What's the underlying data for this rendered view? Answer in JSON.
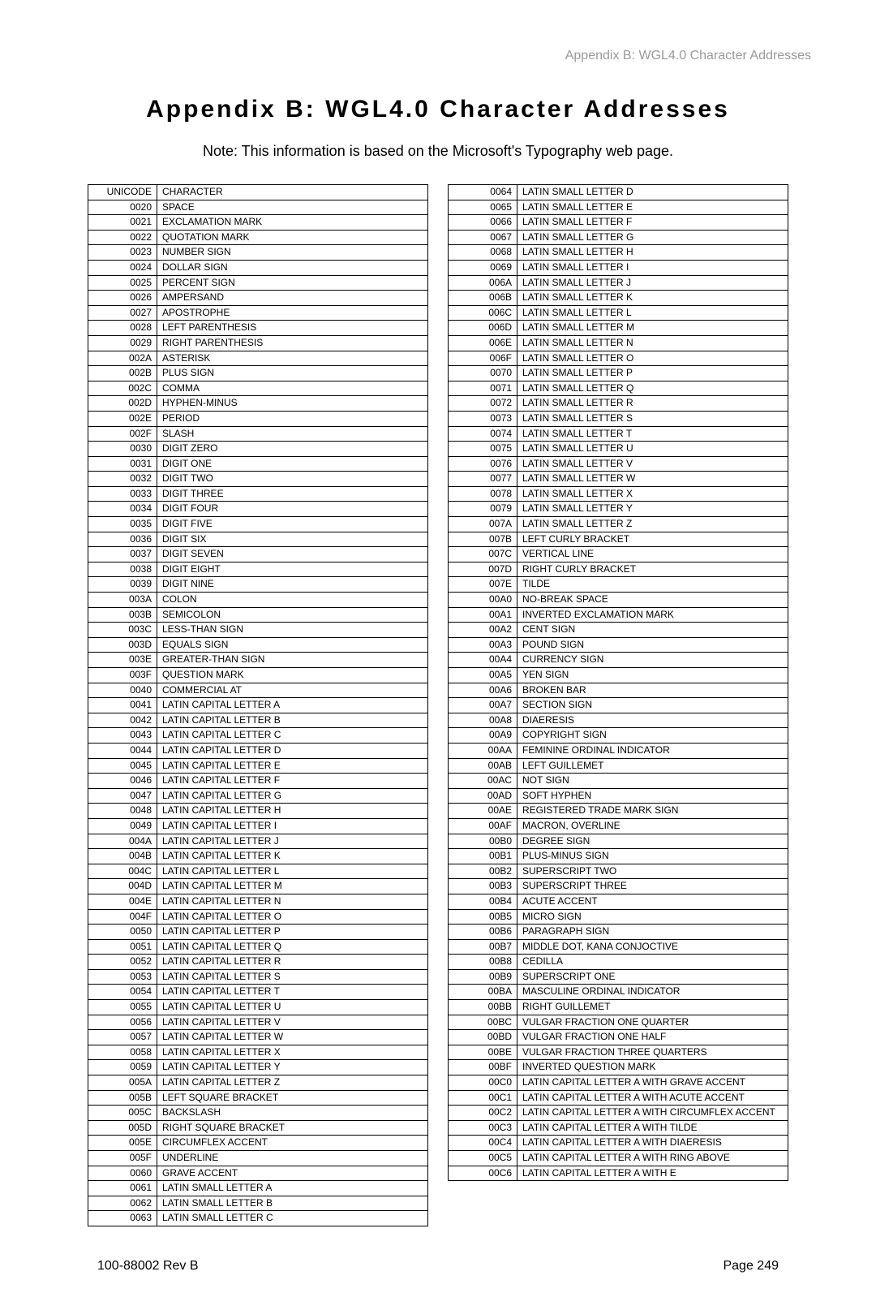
{
  "header": "Appendix B: WGL4.0 Character Addresses",
  "title": "Appendix B: WGL4.0 Character Addresses",
  "note": "Note: This information is based on the Microsoft's Typography web page.",
  "footer_left": "100-88002 Rev B",
  "footer_right": "Page 249",
  "table_header_code": "UNICODE",
  "table_header_name": "CHARACTER",
  "left_rows": [
    [
      "0020",
      "SPACE"
    ],
    [
      "0021",
      "EXCLAMATION MARK"
    ],
    [
      "0022",
      "QUOTATION MARK"
    ],
    [
      "0023",
      "NUMBER SIGN"
    ],
    [
      "0024",
      "DOLLAR SIGN"
    ],
    [
      "0025",
      "PERCENT SIGN"
    ],
    [
      "0026",
      "AMPERSAND"
    ],
    [
      "0027",
      "APOSTROPHE"
    ],
    [
      "0028",
      "LEFT PARENTHESIS"
    ],
    [
      "0029",
      "RIGHT PARENTHESIS"
    ],
    [
      "002A",
      "ASTERISK"
    ],
    [
      "002B",
      "PLUS SIGN"
    ],
    [
      "002C",
      "COMMA"
    ],
    [
      "002D",
      "HYPHEN-MINUS"
    ],
    [
      "002E",
      "PERIOD"
    ],
    [
      "002F",
      "SLASH"
    ],
    [
      "0030",
      "DIGIT ZERO"
    ],
    [
      "0031",
      "DIGIT ONE"
    ],
    [
      "0032",
      "DIGIT TWO"
    ],
    [
      "0033",
      "DIGIT THREE"
    ],
    [
      "0034",
      "DIGIT FOUR"
    ],
    [
      "0035",
      "DIGIT FIVE"
    ],
    [
      "0036",
      "DIGIT SIX"
    ],
    [
      "0037",
      "DIGIT SEVEN"
    ],
    [
      "0038",
      "DIGIT EIGHT"
    ],
    [
      "0039",
      "DIGIT NINE"
    ],
    [
      "003A",
      "COLON"
    ],
    [
      "003B",
      "SEMICOLON"
    ],
    [
      "003C",
      "LESS-THAN SIGN"
    ],
    [
      "003D",
      "EQUALS SIGN"
    ],
    [
      "003E",
      "GREATER-THAN SIGN"
    ],
    [
      "003F",
      "QUESTION MARK"
    ],
    [
      "0040",
      "COMMERCIAL AT"
    ],
    [
      "0041",
      "LATIN CAPITAL LETTER A"
    ],
    [
      "0042",
      "LATIN CAPITAL LETTER B"
    ],
    [
      "0043",
      "LATIN CAPITAL LETTER C"
    ],
    [
      "0044",
      "LATIN CAPITAL LETTER D"
    ],
    [
      "0045",
      "LATIN CAPITAL LETTER E"
    ],
    [
      "0046",
      "LATIN CAPITAL LETTER F"
    ],
    [
      "0047",
      "LATIN CAPITAL LETTER G"
    ],
    [
      "0048",
      "LATIN CAPITAL LETTER H"
    ],
    [
      "0049",
      "LATIN CAPITAL LETTER I"
    ],
    [
      "004A",
      "LATIN CAPITAL LETTER J"
    ],
    [
      "004B",
      "LATIN CAPITAL LETTER K"
    ],
    [
      "004C",
      "LATIN CAPITAL LETTER L"
    ],
    [
      "004D",
      "LATIN CAPITAL LETTER M"
    ],
    [
      "004E",
      "LATIN CAPITAL LETTER N"
    ],
    [
      "004F",
      "LATIN CAPITAL LETTER O"
    ],
    [
      "0050",
      "LATIN CAPITAL LETTER P"
    ],
    [
      "0051",
      "LATIN CAPITAL LETTER Q"
    ],
    [
      "0052",
      "LATIN CAPITAL LETTER R"
    ],
    [
      "0053",
      "LATIN CAPITAL LETTER S"
    ],
    [
      "0054",
      "LATIN CAPITAL LETTER T"
    ],
    [
      "0055",
      "LATIN CAPITAL LETTER U"
    ],
    [
      "0056",
      "LATIN CAPITAL LETTER V"
    ],
    [
      "0057",
      "LATIN CAPITAL LETTER W"
    ],
    [
      "0058",
      "LATIN CAPITAL LETTER X"
    ],
    [
      "0059",
      "LATIN CAPITAL LETTER Y"
    ],
    [
      "005A",
      "LATIN CAPITAL LETTER Z"
    ],
    [
      "005B",
      "LEFT SQUARE BRACKET"
    ],
    [
      "005C",
      "BACKSLASH"
    ],
    [
      "005D",
      "RIGHT SQUARE BRACKET"
    ],
    [
      "005E",
      "CIRCUMFLEX ACCENT"
    ],
    [
      "005F",
      "UNDERLINE"
    ],
    [
      "0060",
      "GRAVE ACCENT"
    ],
    [
      "0061",
      "LATIN SMALL LETTER A"
    ],
    [
      "0062",
      "LATIN SMALL LETTER B"
    ],
    [
      "0063",
      "LATIN SMALL LETTER C"
    ]
  ],
  "right_rows": [
    [
      "0064",
      "LATIN SMALL LETTER D"
    ],
    [
      "0065",
      "LATIN SMALL LETTER E"
    ],
    [
      "0066",
      "LATIN SMALL LETTER F"
    ],
    [
      "0067",
      "LATIN SMALL LETTER G"
    ],
    [
      "0068",
      "LATIN SMALL LETTER H"
    ],
    [
      "0069",
      "LATIN SMALL LETTER I"
    ],
    [
      "006A",
      "LATIN SMALL LETTER J"
    ],
    [
      "006B",
      "LATIN SMALL LETTER K"
    ],
    [
      "006C",
      "LATIN SMALL LETTER L"
    ],
    [
      "006D",
      "LATIN SMALL LETTER M"
    ],
    [
      "006E",
      "LATIN SMALL LETTER N"
    ],
    [
      "006F",
      "LATIN SMALL LETTER O"
    ],
    [
      "0070",
      "LATIN SMALL LETTER P"
    ],
    [
      "0071",
      "LATIN SMALL LETTER Q"
    ],
    [
      "0072",
      "LATIN SMALL LETTER R"
    ],
    [
      "0073",
      "LATIN SMALL LETTER S"
    ],
    [
      "0074",
      "LATIN SMALL LETTER T"
    ],
    [
      "0075",
      "LATIN SMALL LETTER U"
    ],
    [
      "0076",
      "LATIN SMALL LETTER V"
    ],
    [
      "0077",
      "LATIN SMALL LETTER W"
    ],
    [
      "0078",
      "LATIN SMALL LETTER X"
    ],
    [
      "0079",
      "LATIN SMALL LETTER Y"
    ],
    [
      "007A",
      "LATIN SMALL LETTER Z"
    ],
    [
      "007B",
      "LEFT CURLY BRACKET"
    ],
    [
      "007C",
      "VERTICAL LINE"
    ],
    [
      "007D",
      "RIGHT CURLY BRACKET"
    ],
    [
      "007E",
      "TILDE"
    ],
    [
      "00A0",
      "NO-BREAK SPACE"
    ],
    [
      "00A1",
      "INVERTED EXCLAMATION MARK"
    ],
    [
      "00A2",
      "CENT SIGN"
    ],
    [
      "00A3",
      "POUND SIGN"
    ],
    [
      "00A4",
      "CURRENCY SIGN"
    ],
    [
      "00A5",
      "YEN SIGN"
    ],
    [
      "00A6",
      "BROKEN BAR"
    ],
    [
      "00A7",
      "SECTION SIGN"
    ],
    [
      "00A8",
      "DIAERESIS"
    ],
    [
      "00A9",
      "COPYRIGHT SIGN"
    ],
    [
      "00AA",
      "FEMININE ORDINAL INDICATOR"
    ],
    [
      "00AB",
      "LEFT GUILLEMET"
    ],
    [
      "00AC",
      "NOT SIGN"
    ],
    [
      "00AD",
      "SOFT HYPHEN"
    ],
    [
      "00AE",
      "REGISTERED TRADE MARK SIGN"
    ],
    [
      "00AF",
      "MACRON, OVERLINE"
    ],
    [
      "00B0",
      "DEGREE SIGN"
    ],
    [
      "00B1",
      "PLUS-MINUS SIGN"
    ],
    [
      "00B2",
      "SUPERSCRIPT TWO"
    ],
    [
      "00B3",
      "SUPERSCRIPT THREE"
    ],
    [
      "00B4",
      "ACUTE ACCENT"
    ],
    [
      "00B5",
      "MICRO SIGN"
    ],
    [
      "00B6",
      "PARAGRAPH SIGN"
    ],
    [
      "00B7",
      "MIDDLE DOT, KANA CONJOCTIVE"
    ],
    [
      "00B8",
      "CEDILLA"
    ],
    [
      "00B9",
      "SUPERSCRIPT ONE"
    ],
    [
      "00BA",
      "MASCULINE ORDINAL INDICATOR"
    ],
    [
      "00BB",
      "RIGHT GUILLEMET"
    ],
    [
      "00BC",
      "VULGAR FRACTION ONE QUARTER"
    ],
    [
      "00BD",
      "VULGAR FRACTION ONE HALF"
    ],
    [
      "00BE",
      "VULGAR FRACTION THREE QUARTERS"
    ],
    [
      "00BF",
      "INVERTED QUESTION MARK"
    ],
    [
      "00C0",
      "LATIN CAPITAL LETTER A WITH GRAVE ACCENT"
    ],
    [
      "00C1",
      "LATIN CAPITAL LETTER A WITH ACUTE ACCENT"
    ],
    [
      "00C2",
      "LATIN CAPITAL LETTER A WITH CIRCUMFLEX ACCENT"
    ],
    [
      "00C3",
      "LATIN CAPITAL LETTER A WITH TILDE"
    ],
    [
      "00C4",
      "LATIN CAPITAL LETTER A WITH DIAERESIS"
    ],
    [
      "00C5",
      "LATIN CAPITAL LETTER A WITH RING ABOVE"
    ],
    [
      "00C6",
      "LATIN CAPITAL LETTER A WITH E"
    ]
  ]
}
